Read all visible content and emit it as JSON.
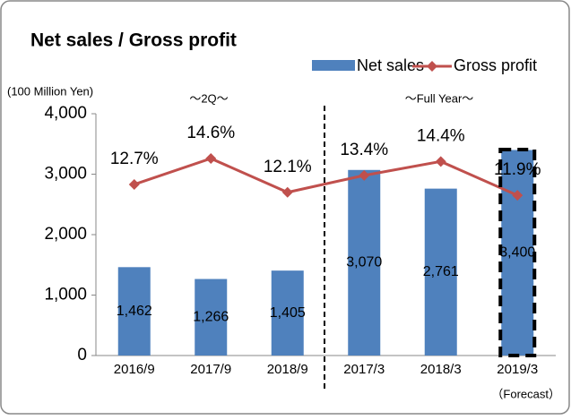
{
  "chart_data": {
    "type": "bar",
    "title": "Net sales / Gross profit",
    "y_axis_label": "(100 Million Yen)",
    "group_labels": [
      "～2Q～",
      "～Full Year～"
    ],
    "footnote": "（Forecast）",
    "categories": [
      "2016/9",
      "2017/9",
      "2018/9",
      "2017/3",
      "2018/3",
      "2019/3"
    ],
    "series": [
      {
        "name": "Net sales",
        "type": "bar",
        "color": "#4f81bd",
        "values": [
          1462,
          1266,
          1405,
          3070,
          2761,
          3400
        ],
        "value_labels": [
          "1,462",
          "1,266",
          "1,405",
          "3,070",
          "2,761",
          "3,400"
        ]
      },
      {
        "name": "Gross profit",
        "type": "line",
        "color": "#c0504d",
        "values": [
          2830,
          3260,
          2700,
          2980,
          3210,
          2650
        ]
      }
    ],
    "annotations": [
      "12.7%",
      "14.6%",
      "12.1%",
      "13.4%",
      "14.4%",
      "11.9%"
    ],
    "ylim": [
      0,
      4000
    ],
    "yticks": [
      0,
      {
        "value": 1000,
        "label": "1,000"
      },
      {
        "value": 2000,
        "label": "2,000"
      },
      {
        "value": 3000,
        "label": "3,000"
      },
      {
        "value": 4000,
        "label": "4,000"
      }
    ],
    "legend": "top-right"
  }
}
